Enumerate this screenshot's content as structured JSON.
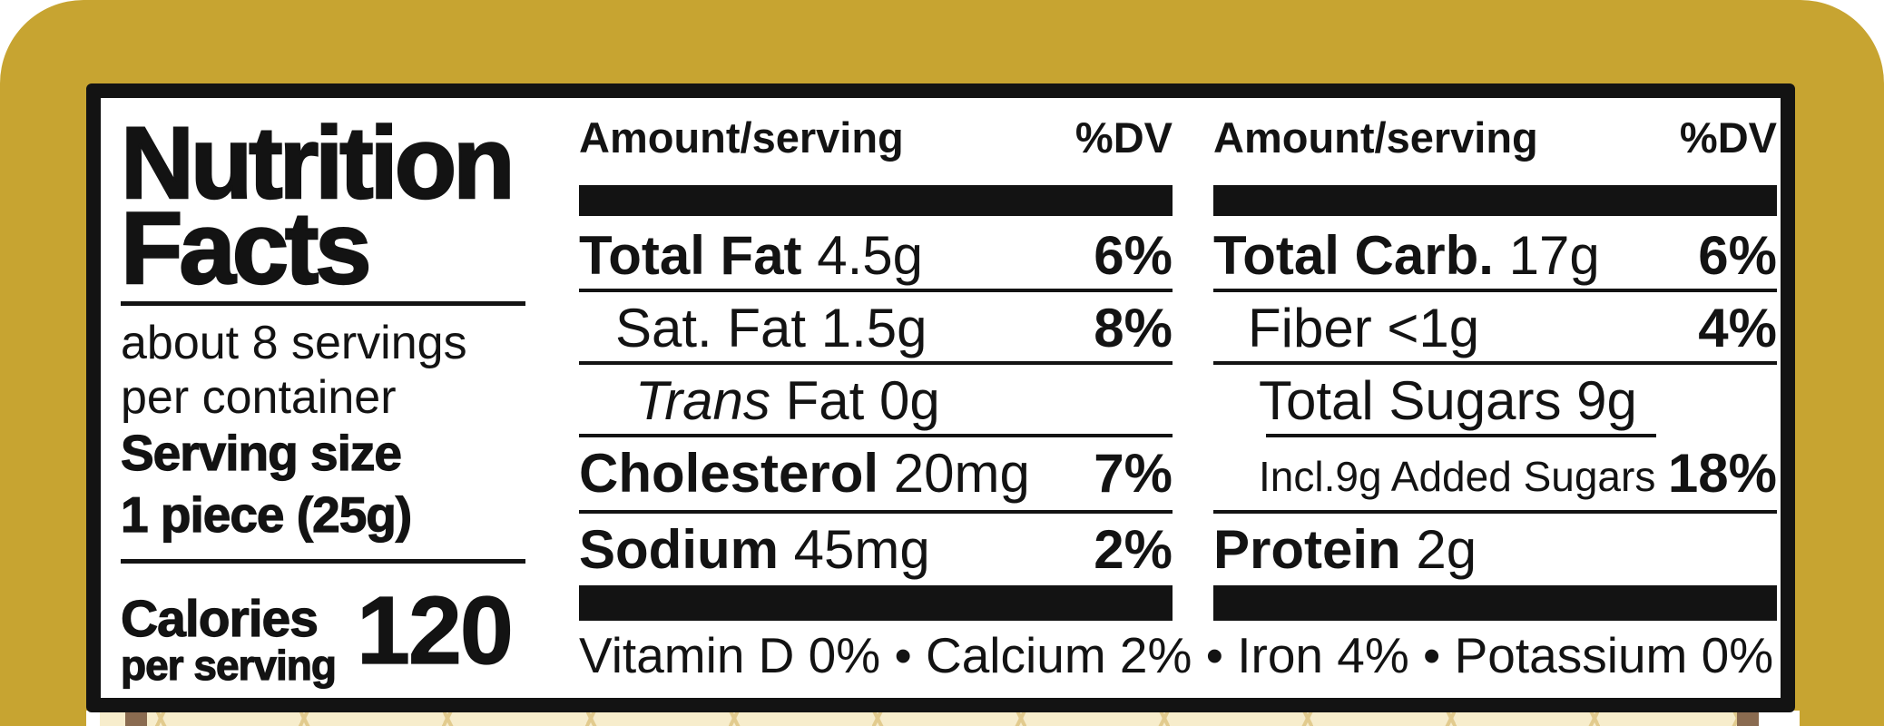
{
  "product": {
    "wrapper_color": "#c7a431",
    "wafer_color": "#f7edcc",
    "wafer_line_color": "#e2cb8e",
    "stick_color": "#8a6b50",
    "label_border_color": "#131313",
    "label_background": "#ffffff"
  },
  "label": {
    "title_line1": "Nutrition",
    "title_line2": "Facts",
    "servings_text_line1": "about 8 servings",
    "servings_text_line2": "per container",
    "serving_size_label": "Serving size",
    "serving_size_value": "1 piece (25g)",
    "calories_label": "Calories",
    "calories_sublabel": "per serving",
    "calories_value": "120",
    "columns": [
      {
        "header_amount": "Amount/serving",
        "header_dv": "%DV",
        "rows": [
          {
            "name": "Total Fat",
            "style": "bold",
            "value": "4.5g",
            "dv": "6%",
            "indent": 0
          },
          {
            "name": "Sat. Fat",
            "style": "regular",
            "value": "1.5g",
            "dv": "8%",
            "indent": 40
          },
          {
            "name": "Trans",
            "style": "italic",
            "value": "Fat 0g",
            "dv": "",
            "indent": 62
          },
          {
            "name": "Cholesterol",
            "style": "bold",
            "value": "20mg",
            "dv": "7%",
            "indent": 0
          },
          {
            "name": "Sodium",
            "style": "bold",
            "value": "45mg",
            "dv": "2%",
            "indent": 0
          }
        ]
      },
      {
        "header_amount": "Amount/serving",
        "header_dv": "%DV",
        "rows": [
          {
            "name": "Total Carb.",
            "style": "bold",
            "value": "17g",
            "dv": "6%",
            "indent": 0
          },
          {
            "name": "Fiber",
            "style": "regular",
            "value": "<1g",
            "dv": "4%",
            "indent": 38
          },
          {
            "name": "Total Sugars",
            "style": "regular",
            "value": "9g",
            "dv": "",
            "indent": 50,
            "underline": "indent"
          },
          {
            "name": "Incl.9g Added Sugars",
            "style": "regular",
            "value": "",
            "dv": "18%",
            "indent": 50,
            "small": true
          },
          {
            "name": "Protein",
            "style": "bold",
            "value": "2g",
            "dv": "",
            "indent": 0
          }
        ]
      }
    ],
    "footer": "Vitamin D 0% • Calcium 2% • Iron 4% • Potassium 0%"
  }
}
